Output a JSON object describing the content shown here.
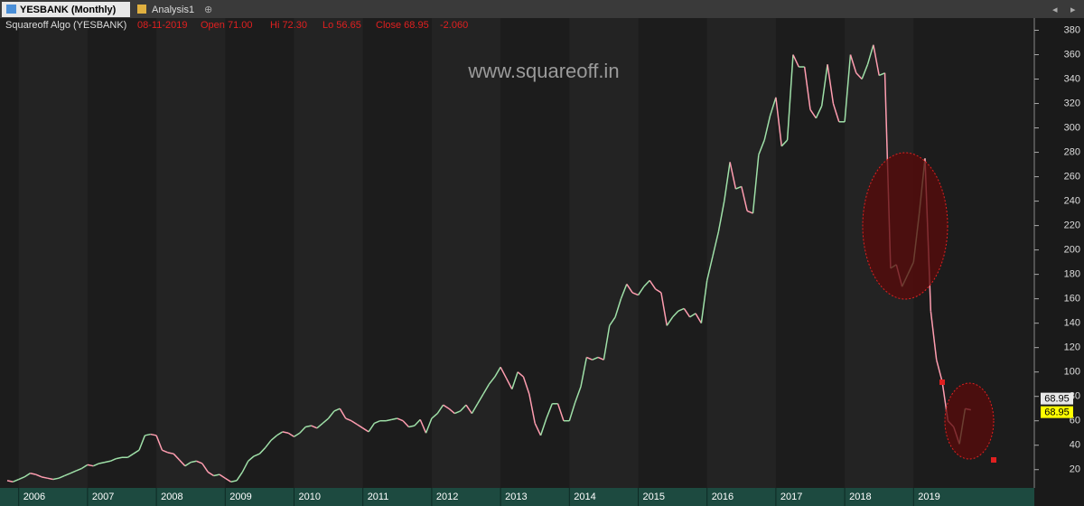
{
  "ui": {
    "tabs": [
      "YESBANK (Monthly)",
      "Analysis1"
    ],
    "info": [
      "Squareoff Algo (YESBANK)",
      "08-11-2019",
      "Open 71.00",
      "Hi 72.30",
      "Lo 56.65",
      "Close 68.95",
      "-2.060"
    ],
    "watermark": "www.squareoff.in",
    "price_tags": [
      "68.95",
      "68.95"
    ]
  },
  "chart_data": {
    "type": "line",
    "categories": [
      null,
      null,
      "2006",
      null,
      null,
      null,
      null,
      null,
      null,
      null,
      null,
      null,
      null,
      null,
      "2007",
      null,
      null,
      null,
      null,
      null,
      null,
      null,
      null,
      null,
      null,
      null,
      "2008",
      null,
      null,
      null,
      null,
      null,
      null,
      null,
      null,
      null,
      null,
      null,
      "2009",
      null,
      null,
      null,
      null,
      null,
      null,
      null,
      null,
      null,
      null,
      null,
      "2010",
      null,
      null,
      null,
      null,
      null,
      null,
      null,
      null,
      null,
      null,
      null,
      "2011",
      null,
      null,
      null,
      null,
      null,
      null,
      null,
      null,
      null,
      null,
      null,
      "2012",
      null,
      null,
      null,
      null,
      null,
      null,
      null,
      null,
      null,
      null,
      null,
      "2013",
      null,
      null,
      null,
      null,
      null,
      null,
      null,
      null,
      null,
      null,
      null,
      "2014",
      null,
      null,
      null,
      null,
      null,
      null,
      null,
      null,
      null,
      null,
      null,
      "2015",
      null,
      null,
      null,
      null,
      null,
      null,
      null,
      null,
      null,
      null,
      null,
      "2016",
      null,
      null,
      null,
      null,
      null,
      null,
      null,
      null,
      null,
      null,
      null,
      "2017",
      null,
      null,
      null,
      null,
      null,
      null,
      null,
      null,
      null,
      null,
      null,
      "2018",
      null,
      null,
      null,
      null,
      null,
      null,
      null,
      null,
      null,
      null,
      null,
      "2019",
      null,
      null,
      null,
      null,
      null,
      null,
      null,
      null,
      null,
      null
    ],
    "values": [
      11,
      10,
      12,
      14,
      17,
      16,
      14,
      13,
      12,
      13,
      15,
      17,
      19,
      21,
      24,
      23,
      25,
      26,
      27,
      29,
      30,
      30,
      33,
      36,
      48,
      49,
      48,
      36,
      34,
      33,
      28,
      23,
      26,
      27,
      25,
      18,
      15,
      16,
      13,
      10,
      11,
      18,
      27,
      31,
      33,
      38,
      44,
      48,
      51,
      50,
      47,
      50,
      55,
      56,
      54,
      58,
      62,
      68,
      70,
      62,
      60,
      57,
      54,
      51,
      58,
      60,
      60,
      61,
      62,
      60,
      55,
      56,
      61,
      50,
      62,
      66,
      73,
      70,
      66,
      68,
      73,
      66,
      74,
      82,
      90,
      96,
      104,
      95,
      86,
      100,
      96,
      82,
      58,
      48,
      62,
      74,
      74,
      60,
      60,
      75,
      88,
      112,
      110,
      112,
      110,
      138,
      145,
      160,
      172,
      165,
      163,
      170,
      175,
      168,
      165,
      138,
      145,
      150,
      152,
      145,
      148,
      140,
      175,
      195,
      215,
      240,
      272,
      250,
      252,
      232,
      230,
      278,
      290,
      310,
      325,
      285,
      290,
      360,
      350,
      350,
      315,
      308,
      318,
      352,
      320,
      305,
      305,
      360,
      345,
      340,
      352,
      368,
      343,
      345,
      185,
      188,
      170,
      180,
      190,
      230,
      275,
      150,
      110,
      92,
      60,
      55,
      41,
      70,
      68.95
    ],
    "up_color": "#9fe0a8",
    "down_color": "#ff9db0",
    "ylim": [
      5,
      390
    ],
    "yticks": [
      20,
      40,
      60,
      80,
      100,
      120,
      140,
      160,
      180,
      200,
      220,
      240,
      260,
      280,
      300,
      320,
      340,
      360,
      380
    ],
    "grid": false
  }
}
